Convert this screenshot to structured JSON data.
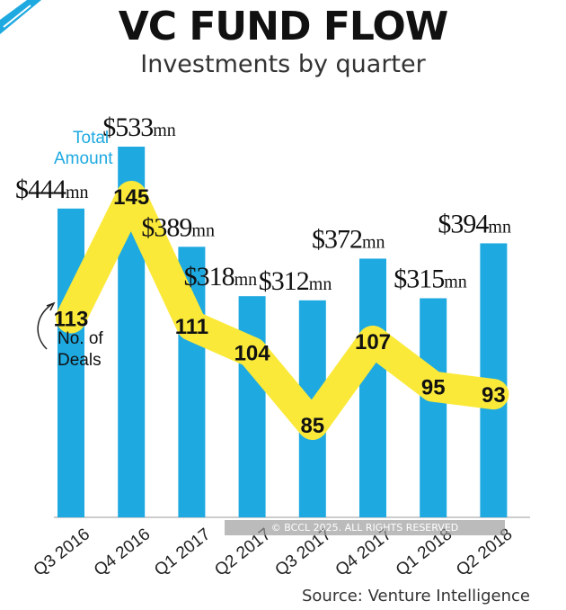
{
  "title": "VC FUND FLOW",
  "subtitle": "Investments by quarter",
  "source": "Source: Venture Intelligence",
  "watermark": "© BCCL 2025. ALL RIGHTS RESERVED",
  "legend": {
    "amount_label_line1": "Total",
    "amount_label_line2": "Amount",
    "deals_label_line1": "No. of",
    "deals_label_line2": "Deals"
  },
  "colors": {
    "bar": "#1ea9e1",
    "line": "#fbe93a",
    "accent": "#1ea9e1"
  },
  "chart_data": {
    "type": "bar",
    "title": "VC FUND FLOW",
    "subtitle": "Investments by quarter",
    "categories": [
      "Q3 2016",
      "Q4 2016",
      "Q1 2017",
      "Q2 2017",
      "Q3 2017",
      "Q4 2017",
      "Q1 2018",
      "Q2 2018"
    ],
    "category_labels": [
      "Q3 2016",
      "Q4 2016",
      "Q1 2017",
      "Q2 2017",
      "Q3 2017",
      "Q4 2017",
      "Q1 2018",
      "Q2 2018"
    ],
    "unit": "mn",
    "series": [
      {
        "name": "Total Amount",
        "type": "bar",
        "values": [
          444,
          533,
          389,
          318,
          312,
          372,
          315,
          394
        ],
        "labels": [
          "$444",
          "$533",
          "$389",
          "$318",
          "$312",
          "$372",
          "$315",
          "$394"
        ]
      },
      {
        "name": "No. of Deals",
        "type": "line",
        "values": [
          113,
          145,
          111,
          104,
          85,
          107,
          95,
          93
        ],
        "labels": [
          "113",
          "145",
          "111",
          "104",
          "85",
          "107",
          "95",
          "93"
        ]
      }
    ],
    "ylim": [
      0,
      533
    ],
    "grid": false
  }
}
